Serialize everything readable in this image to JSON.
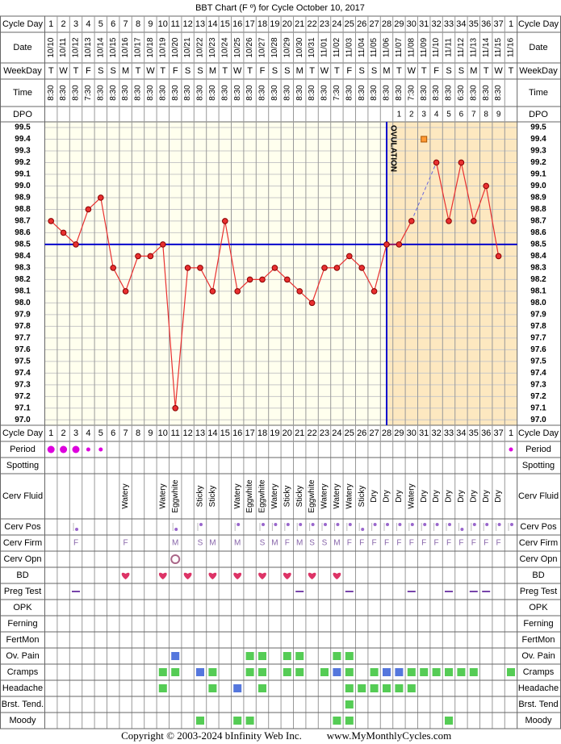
{
  "title": "BBT Chart (F º) for Cycle October 10, 2017",
  "footer": {
    "copyright": "Copyright © 2003-2024 bInfinity Web Inc.",
    "site": "www.MyMonthlyCycles.com"
  },
  "labels": {
    "cycle_day": "Cycle Day",
    "date": "Date",
    "weekday": "WeekDay",
    "time": "Time",
    "dpo": "DPO"
  },
  "dates": [
    "10/10",
    "10/11",
    "10/12",
    "10/13",
    "10/14",
    "10/15",
    "10/16",
    "10/17",
    "10/18",
    "10/19",
    "10/20",
    "10/21",
    "10/22",
    "10/23",
    "10/24",
    "10/25",
    "10/26",
    "10/27",
    "10/28",
    "10/29",
    "10/30",
    "10/31",
    "11/01",
    "11/02",
    "11/03",
    "11/04",
    "11/05",
    "11/06",
    "11/07",
    "11/08",
    "11/09",
    "11/10",
    "11/11",
    "11/12",
    "11/13",
    "11/14",
    "11/15",
    "11/16"
  ],
  "weekdays": [
    "T",
    "W",
    "T",
    "F",
    "S",
    "S",
    "M",
    "T",
    "W",
    "T",
    "F",
    "S",
    "S",
    "M",
    "T",
    "W",
    "T",
    "F",
    "S",
    "S",
    "M",
    "T",
    "W",
    "T",
    "F",
    "S",
    "S",
    "M",
    "T",
    "W",
    "T",
    "F",
    "S",
    "S",
    "M",
    "T",
    "W",
    "T"
  ],
  "times": [
    "8:30",
    "8:30",
    "8:30",
    "7:30",
    "8:30",
    "8:30",
    "8:30",
    "8:30",
    "8:30",
    "8:30",
    "8:30",
    "8:30",
    "8:30",
    "8:30",
    "8:30",
    "8:30",
    "8:30",
    "8:30",
    "8:30",
    "8:30",
    "8:30",
    "8:30",
    "8:30",
    "7:30",
    "8:30",
    "8:30",
    "8:30",
    "8:30",
    "8:30",
    "7:30",
    "8:30",
    "8:30",
    "8:30",
    "6:30",
    "8:30",
    "8:30",
    "8:30",
    null
  ],
  "dpo": [
    null,
    null,
    null,
    null,
    null,
    null,
    null,
    null,
    null,
    null,
    null,
    null,
    null,
    null,
    null,
    null,
    null,
    null,
    null,
    null,
    null,
    null,
    null,
    null,
    null,
    null,
    null,
    null,
    1,
    2,
    3,
    4,
    5,
    6,
    7,
    8,
    9,
    null
  ],
  "chart_data": {
    "type": "line",
    "categories": [
      1,
      2,
      3,
      4,
      5,
      6,
      7,
      8,
      9,
      10,
      11,
      12,
      13,
      14,
      15,
      16,
      17,
      18,
      19,
      20,
      21,
      22,
      23,
      24,
      25,
      26,
      27,
      28,
      29,
      30,
      31,
      32,
      33,
      34,
      35,
      36,
      37,
      1
    ],
    "values": [
      98.7,
      98.6,
      98.5,
      98.8,
      98.9,
      98.3,
      98.1,
      98.4,
      98.4,
      98.5,
      97.1,
      98.3,
      98.3,
      98.1,
      98.7,
      98.1,
      98.2,
      98.2,
      98.3,
      98.2,
      98.1,
      98.0,
      98.3,
      98.3,
      98.4,
      98.3,
      98.1,
      98.5,
      98.5,
      98.7,
      null,
      99.2,
      98.7,
      99.2,
      98.7,
      99.0,
      98.4,
      null
    ],
    "color": "#e83030",
    "excluded_values": [
      null,
      null,
      null,
      null,
      null,
      null,
      null,
      null,
      null,
      null,
      null,
      null,
      null,
      null,
      null,
      null,
      null,
      null,
      null,
      null,
      null,
      null,
      null,
      null,
      null,
      null,
      null,
      null,
      null,
      null,
      99.4,
      null,
      null,
      null,
      null,
      null,
      null,
      null
    ],
    "excluded_color": "#ff9933",
    "coverline": 98.5,
    "coverline_color": "#0000cc",
    "ovulation_label": "OVULATION",
    "ovulation_date": "11/06",
    "ovulation_shade": "#fde8c0",
    "ylim": [
      97.0,
      99.5
    ],
    "yticks": [
      {
        "value": 97.0,
        "label": "97.0"
      },
      97.1,
      97.2,
      97.3,
      97.4,
      97.5,
      97.6,
      97.7,
      97.8,
      97.9,
      {
        "value": 98.0,
        "label": "98.0"
      },
      98.1,
      98.2,
      98.3,
      98.4,
      98.5,
      98.6,
      98.7,
      98.8,
      98.9,
      {
        "value": 99.0,
        "label": "99.0"
      },
      99.1,
      99.2,
      99.3,
      99.4,
      99.5
    ],
    "grid": true
  },
  "rows": [
    {
      "label": "Period",
      "kind": "period",
      "color": "#dd00dd",
      "marks": {
        "0": "heavy",
        "1": "heavy",
        "2": "heavy",
        "3": "light",
        "4": "light",
        "37": "light"
      }
    },
    {
      "label": "Spotting",
      "kind": "period",
      "color": "#dd00dd",
      "marks": {}
    },
    {
      "label": "Cerv Fluid",
      "kind": "text",
      "marks": {
        "6": "Watery",
        "9": "Watery",
        "10": "Eggwhite",
        "12": "Sticky",
        "13": "Sticky",
        "15": "Watery",
        "16": "Eggwhite",
        "17": "Eggwhite",
        "18": "Watery",
        "19": "Sticky",
        "20": "Sticky",
        "21": "Eggwhite",
        "22": "Watery",
        "23": "Watery",
        "24": "Watery",
        "25": "Sticky",
        "26": "Dry",
        "27": "Dry",
        "28": "Dry",
        "29": "Watery",
        "30": "Dry",
        "31": "Dry",
        "32": "Dry",
        "33": "Dry",
        "34": "Dry",
        "35": "Dry",
        "36": "Dry"
      }
    },
    {
      "label": "Cerv Pos",
      "kind": "pos",
      "color": "#9966cc",
      "marks": {
        "2": "low",
        "10": "low",
        "12": "high",
        "15": "high",
        "17": "high",
        "18": "high",
        "19": "high",
        "20": "high",
        "21": "high",
        "22": "high",
        "23": "high",
        "24": "high",
        "25": "low",
        "26": "high",
        "27": "high",
        "28": "high",
        "29": "high",
        "30": "high",
        "31": "high",
        "32": "high",
        "33": "low",
        "34": "high",
        "35": "high",
        "36": "high",
        "37": "high"
      }
    },
    {
      "label": "Cerv Firm",
      "kind": "letter",
      "color": "#8866aa",
      "marks": {
        "2": "F",
        "6": "F",
        "10": "M",
        "12": "S",
        "13": "M",
        "15": "M",
        "17": "S",
        "18": "M",
        "19": "F",
        "20": "M",
        "21": "S",
        "22": "S",
        "23": "M",
        "24": "F",
        "25": "F",
        "26": "F",
        "27": "F",
        "28": "F",
        "29": "F",
        "30": "F",
        "31": "F",
        "32": "F",
        "33": "F",
        "34": "F",
        "35": "F",
        "36": "F"
      }
    },
    {
      "label": "Cerv Opn",
      "kind": "ring",
      "color": "#aa6688",
      "marks": {
        "10": "open"
      }
    },
    {
      "label": "BD",
      "kind": "heart",
      "color": "#dd3366",
      "marks": {
        "6": "yes",
        "9": "yes",
        "11": "yes",
        "13": "yes",
        "15": "yes",
        "17": "yes",
        "19": "yes",
        "21": "yes",
        "23": "yes"
      }
    },
    {
      "label": "Preg Test",
      "kind": "dash",
      "color": "#7744aa",
      "marks": {
        "2": "neg",
        "20": "neg",
        "24": "neg",
        "29": "neg",
        "32": "neg",
        "34": "neg",
        "35": "neg"
      }
    },
    {
      "label": "OPK",
      "kind": "square",
      "marks": {}
    },
    {
      "label": "Ferning",
      "kind": "square",
      "marks": {}
    },
    {
      "label": "FertMon",
      "kind": "square",
      "marks": {}
    },
    {
      "label": "Ov. Pain",
      "kind": "square",
      "marks": {
        "10": "#5577dd",
        "16": "#55cc55",
        "17": "#55cc55",
        "19": "#55cc55",
        "20": "#55cc55",
        "23": "#55cc55",
        "24": "#55cc55"
      }
    },
    {
      "label": "Cramps",
      "kind": "square",
      "marks": {
        "9": "#55cc55",
        "10": "#55cc55",
        "12": "#5577dd",
        "13": "#55cc55",
        "16": "#55cc55",
        "17": "#55cc55",
        "19": "#55cc55",
        "20": "#55cc55",
        "22": "#55cc55",
        "23": "#5577dd",
        "24": "#55cc55",
        "26": "#55cc55",
        "27": "#5577dd",
        "28": "#5577dd",
        "29": "#55cc55",
        "30": "#55cc55",
        "31": "#55cc55",
        "32": "#55cc55",
        "33": "#55cc55",
        "34": "#55cc55",
        "37": "#55cc55"
      }
    },
    {
      "label": "Headache",
      "kind": "square",
      "marks": {
        "9": "#55cc55",
        "13": "#55cc55",
        "15": "#5577dd",
        "17": "#55cc55",
        "24": "#55cc55",
        "25": "#55cc55",
        "26": "#55cc55",
        "27": "#55cc55",
        "28": "#55cc55",
        "29": "#55cc55"
      }
    },
    {
      "label": "Brst. Tend.",
      "label_right": "Brst. Tend",
      "kind": "square",
      "marks": {
        "24": "#55cc55"
      }
    },
    {
      "label": "Moody",
      "kind": "square",
      "marks": {
        "12": "#55cc55",
        "15": "#55cc55",
        "16": "#55cc55",
        "23": "#55cc55",
        "24": "#55cc55",
        "32": "#55cc55"
      }
    }
  ]
}
